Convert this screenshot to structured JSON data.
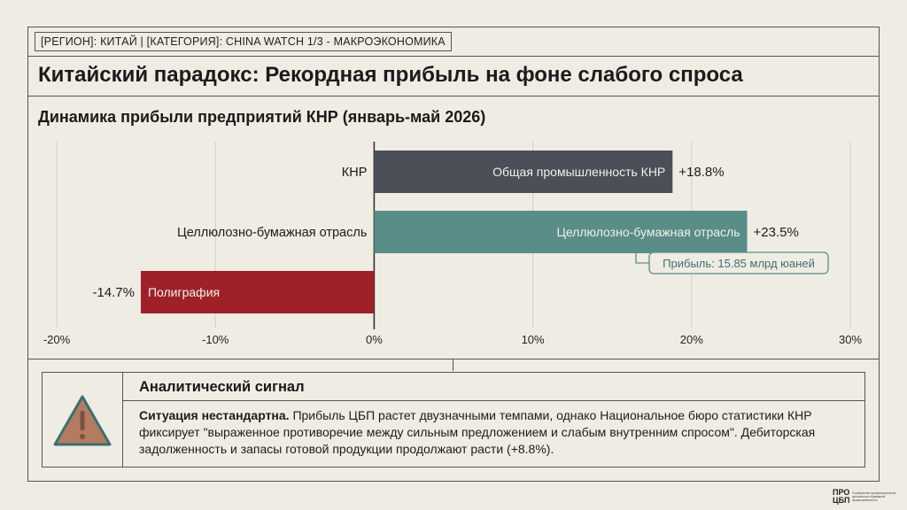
{
  "header": {
    "tag": "[РЕГИОН]: КИТАЙ | [КАТЕГОРИЯ]: CHINA WATCH 1/3 - МАКРОЭКОНОМИКА",
    "title": "Китайский парадокс: Рекордная прибыль на фоне слабого спроса"
  },
  "chart_data": {
    "type": "bar",
    "orientation": "horizontal",
    "title": "Динамика прибыли предприятий КНР (январь-май 2026)",
    "categories": [
      "КНР",
      "Целлюлозно-бумажная отрасль",
      "Полиграфия"
    ],
    "bar_labels": [
      "Общая промышленность КНР",
      "Целлюлозно-бумажная отрасль",
      "Полиграфия"
    ],
    "values": [
      18.8,
      23.5,
      -14.7
    ],
    "value_labels": [
      "+18.8%",
      "+23.5%",
      "-14.7%"
    ],
    "colors": [
      "#4b4f58",
      "#5a8d88",
      "#9e2128"
    ],
    "xlim": [
      -20,
      30
    ],
    "xticks": [
      -20,
      -10,
      0,
      10,
      20,
      30
    ],
    "xtick_labels": [
      "-20%",
      "-10%",
      "0%",
      "10%",
      "20%",
      "30%"
    ],
    "grid": true,
    "annotation": "Прибыль: 15.85 млрд юаней"
  },
  "panel": {
    "icon": "warning-icon",
    "title": "Аналитический сигнал",
    "lead": "Ситуация нестандартна.",
    "body": " Прибыль ЦБП растет двузначными темпами, однако Национальное бюро статистики КНР фиксирует \"выраженное противоречие между сильным предложением и слабым внутренним спросом\". Дебиторская задолженность и запасы готовой продукции продолжают расти (+8.8%)."
  },
  "logo": {
    "main": "ПРО ЦБП",
    "sub": "Сообщество профессионалов целлюлозно-бумажной промышленности"
  }
}
